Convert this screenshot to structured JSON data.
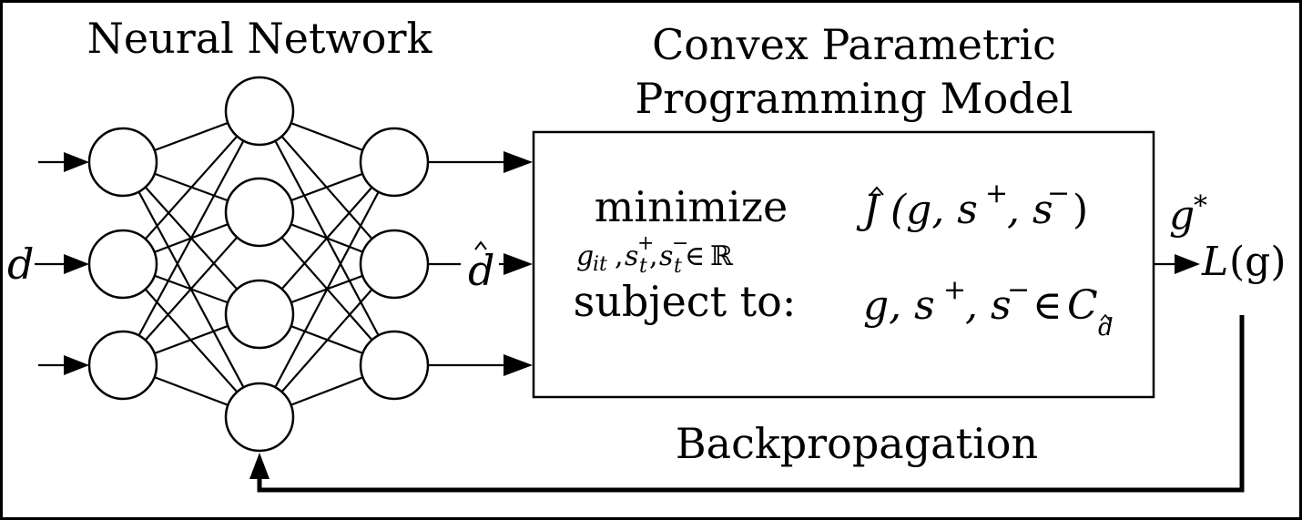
{
  "diagram": {
    "nn_title": "Neural Network",
    "model_title_line1": "Convex Parametric",
    "model_title_line2": "Programming Model",
    "input_label": "d",
    "prediction_label": "d",
    "opt_minimize": "minimize",
    "opt_minimize_under": "g",
    "opt_subscript_vars": "it",
    "opt_reals": "ℝ",
    "opt_objective_fn": "J",
    "opt_objective_args": "(g, s",
    "opt_subject_to": "subject to:",
    "opt_constraint_vars": "g, s",
    "opt_constraint_set": "C",
    "solution_label": "g",
    "loss_label": "L",
    "loss_args": "(g)",
    "backprop_label": "Backpropagation"
  }
}
